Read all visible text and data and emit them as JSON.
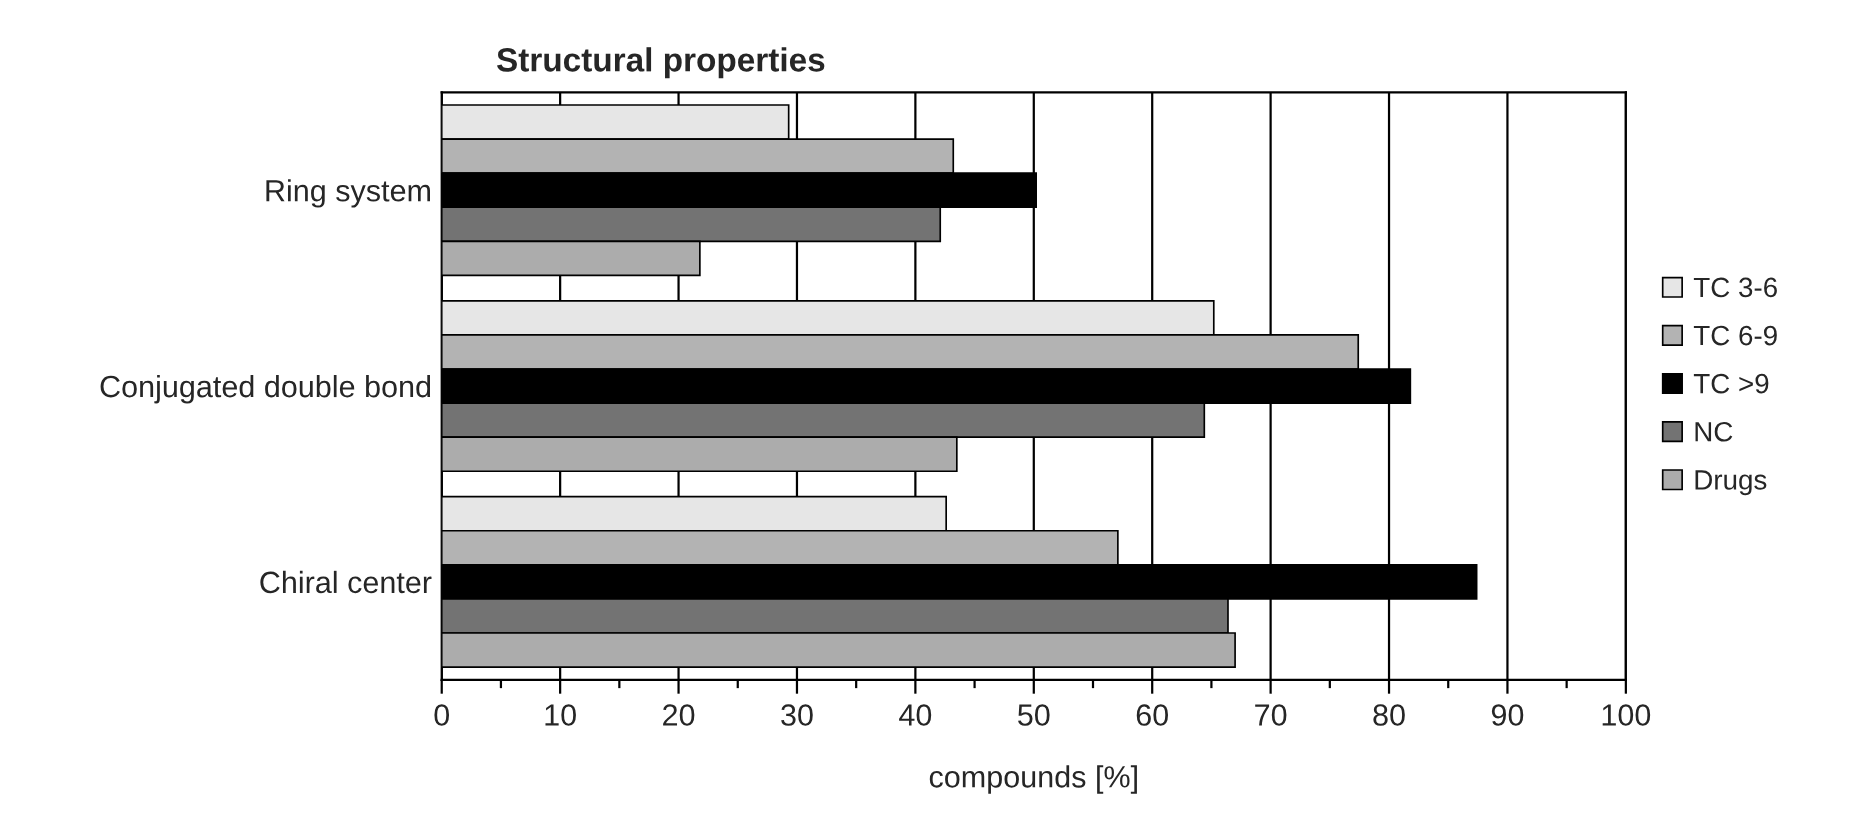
{
  "chart_data": {
    "type": "bar",
    "orientation": "horizontal",
    "title": "Structural properties",
    "xlabel": "compounds [%]",
    "categories": [
      "Ring system",
      "Conjugated double bond",
      "Chiral center"
    ],
    "series": [
      {
        "name": "TC 3-6",
        "color": "#e6e6e6",
        "values": [
          29.3,
          65.2,
          42.6
        ]
      },
      {
        "name": "TC 6-9",
        "color": "#b3b3b3",
        "values": [
          43.2,
          77.4,
          57.1
        ]
      },
      {
        "name": "TC >9",
        "color": "#000000",
        "values": [
          50.2,
          81.8,
          87.4
        ]
      },
      {
        "name": "NC",
        "color": "#737373",
        "values": [
          42.1,
          64.4,
          66.4
        ]
      },
      {
        "name": "Drugs",
        "color": "#acacac",
        "values": [
          21.8,
          43.5,
          67.0
        ]
      }
    ],
    "xlim": [
      0,
      100
    ],
    "xticks": [
      0,
      10,
      20,
      30,
      40,
      50,
      60,
      70,
      80,
      90,
      100
    ],
    "grid": "x",
    "legend": "right"
  }
}
